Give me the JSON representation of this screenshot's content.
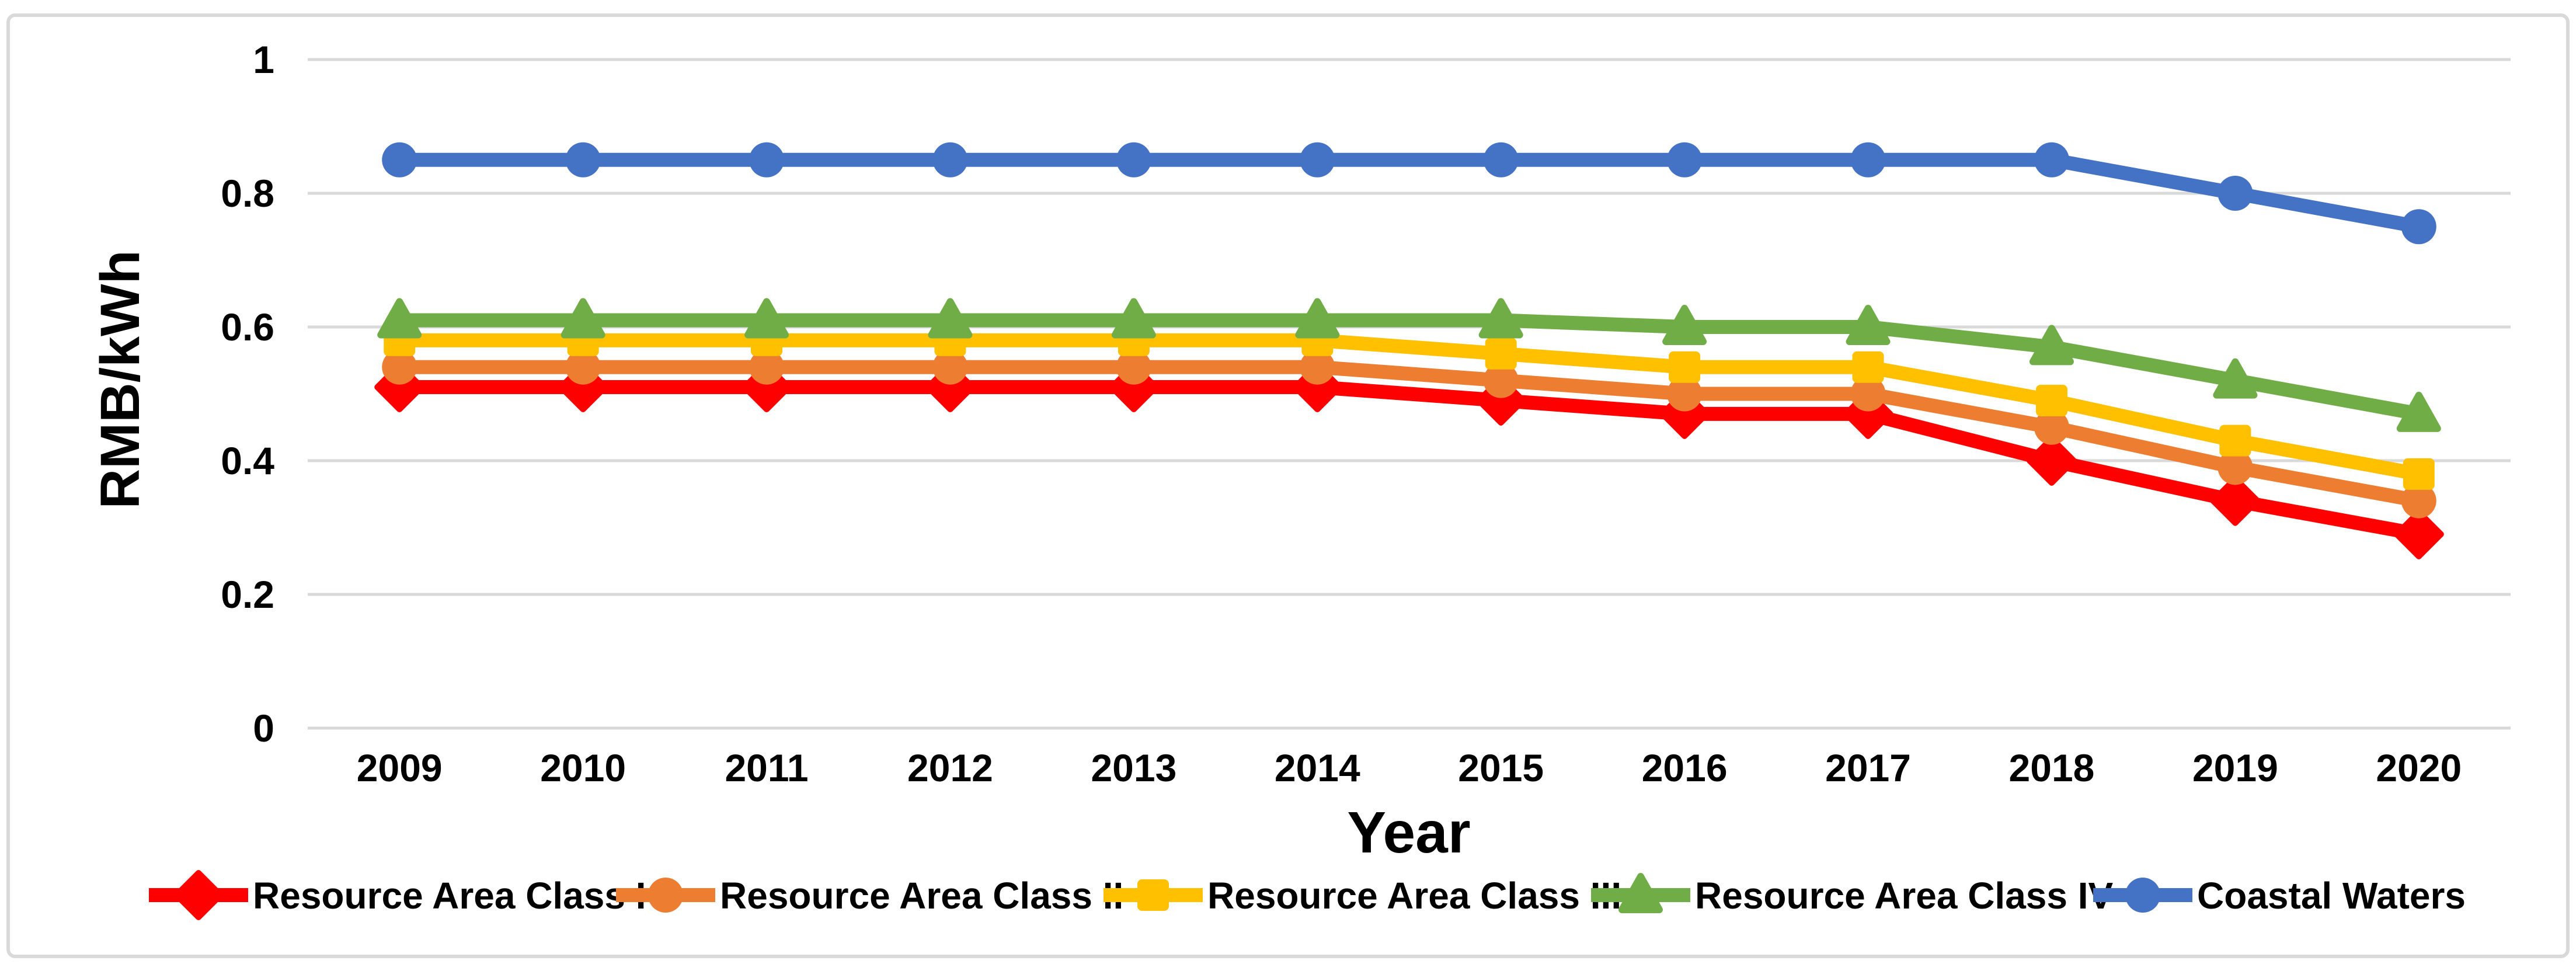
{
  "chart_data": {
    "type": "line",
    "title": "",
    "xlabel": "Year",
    "ylabel": "RMB/kWh",
    "categories": [
      "2009",
      "2010",
      "2011",
      "2012",
      "2013",
      "2014",
      "2015",
      "2016",
      "2017",
      "2018",
      "2019",
      "2020"
    ],
    "ylim": [
      0,
      1
    ],
    "yticks": [
      0,
      0.2,
      0.4,
      0.6,
      0.8,
      1
    ],
    "ytick_labels": [
      "0",
      "0.2",
      "0.4",
      "0.6",
      "0.8",
      "1"
    ],
    "grid": "horizontal",
    "gridline_color": "#D9D9D9",
    "frame_color": "#D9D9D9",
    "text_color": "#000000",
    "background_color": "#FFFFFF",
    "legend_position": "bottom",
    "series": [
      {
        "name": "Resource Area Class I",
        "color": "#FF0000",
        "marker": "diamond-marker",
        "values": [
          0.51,
          0.51,
          0.51,
          0.51,
          0.51,
          0.51,
          0.49,
          0.47,
          0.47,
          0.4,
          0.34,
          0.29
        ]
      },
      {
        "name": "Resource Area Class II",
        "color": "#ED7D31",
        "marker": "circle-marker",
        "values": [
          0.54,
          0.54,
          0.54,
          0.54,
          0.54,
          0.54,
          0.52,
          0.5,
          0.5,
          0.45,
          0.39,
          0.34
        ]
      },
      {
        "name": "Resource Area Class III",
        "color": "#FFC000",
        "marker": "square-marker",
        "values": [
          0.58,
          0.58,
          0.58,
          0.58,
          0.58,
          0.58,
          0.56,
          0.54,
          0.54,
          0.49,
          0.43,
          0.38
        ]
      },
      {
        "name": "Resource Area Class IV",
        "color": "#70AD47",
        "marker": "triangle-marker",
        "values": [
          0.61,
          0.61,
          0.61,
          0.61,
          0.61,
          0.61,
          0.61,
          0.6,
          0.6,
          0.57,
          0.52,
          0.47
        ]
      },
      {
        "name": "Coastal Waters",
        "color": "#4472C4",
        "marker": "circle-marker",
        "values": [
          0.85,
          0.85,
          0.85,
          0.85,
          0.85,
          0.85,
          0.85,
          0.85,
          0.85,
          0.85,
          0.8,
          0.75
        ]
      }
    ]
  }
}
